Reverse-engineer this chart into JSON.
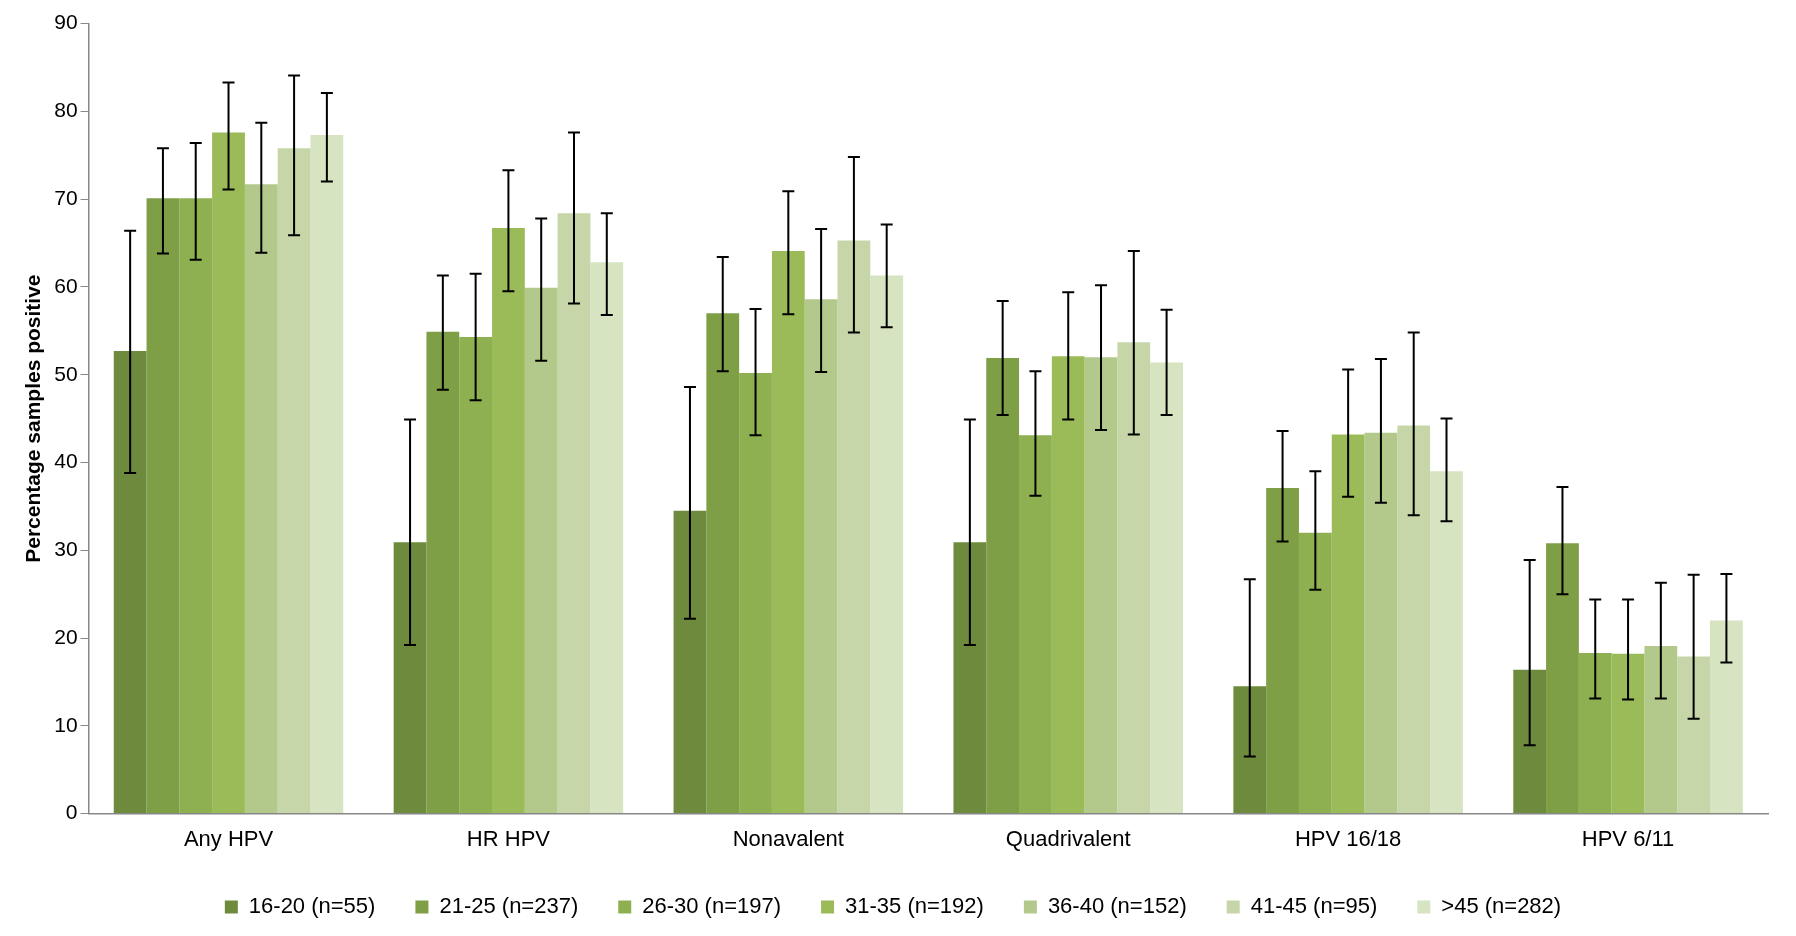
{
  "chart_data": {
    "type": "bar",
    "ylabel": "Percentage samples positive",
    "categories": [
      "Any HPV",
      "HR HPV",
      "Nonavalent",
      "Quadrivalent",
      "HPV 16/18",
      "HPV 6/11"
    ],
    "ylim": [
      0,
      90
    ],
    "yticks": [
      0,
      10,
      20,
      30,
      40,
      50,
      60,
      70,
      80,
      90
    ],
    "grid": false,
    "legend": "bottom",
    "series": [
      {
        "name": "16-20 (n=55)",
        "color": "#6e8b3d",
        "values": [
          52.7,
          30.9,
          34.5,
          30.9,
          14.5,
          16.4
        ],
        "errors": [
          [
            38.8,
            66.4
          ],
          [
            19.2,
            44.9
          ],
          [
            22.2,
            48.6
          ],
          [
            19.2,
            44.9
          ],
          [
            6.5,
            26.7
          ],
          [
            7.8,
            28.9
          ]
        ]
      },
      {
        "name": "21-25 (n=237)",
        "color": "#7f9f47",
        "values": [
          70.1,
          54.9,
          57.0,
          51.9,
          37.1,
          30.8
        ],
        "errors": [
          [
            63.8,
            75.8
          ],
          [
            48.3,
            61.3
          ],
          [
            50.4,
            63.4
          ],
          [
            45.4,
            58.4
          ],
          [
            31.0,
            43.6
          ],
          [
            25.0,
            37.2
          ]
        ]
      },
      {
        "name": "26-30 (n=197)",
        "color": "#8fb050",
        "values": [
          70.1,
          54.3,
          50.2,
          43.1,
          32.0,
          18.3
        ],
        "errors": [
          [
            63.1,
            76.4
          ],
          [
            47.1,
            61.5
          ],
          [
            43.1,
            57.5
          ],
          [
            36.2,
            50.4
          ],
          [
            25.5,
            39.0
          ],
          [
            13.1,
            24.4
          ]
        ]
      },
      {
        "name": "31-35 (n=192)",
        "color": "#9bbb59",
        "values": [
          77.6,
          66.7,
          64.1,
          52.1,
          43.2,
          18.2
        ],
        "errors": [
          [
            71.1,
            83.3
          ],
          [
            59.5,
            73.3
          ],
          [
            56.9,
            70.9
          ],
          [
            44.9,
            59.4
          ],
          [
            36.1,
            50.6
          ],
          [
            13.0,
            24.4
          ]
        ]
      },
      {
        "name": "36-40 (n=152)",
        "color": "#b3c98c",
        "values": [
          71.7,
          59.9,
          58.6,
          52.0,
          43.4,
          19.1
        ],
        "errors": [
          [
            63.9,
            78.7
          ],
          [
            51.6,
            67.8
          ],
          [
            50.3,
            66.6
          ],
          [
            43.7,
            60.2
          ],
          [
            35.4,
            51.8
          ],
          [
            13.1,
            26.3
          ]
        ]
      },
      {
        "name": "41-45 (n=95)",
        "color": "#c6d6a8",
        "values": [
          75.8,
          68.4,
          65.3,
          53.7,
          44.2,
          17.9
        ],
        "errors": [
          [
            65.9,
            84.1
          ],
          [
            58.1,
            77.6
          ],
          [
            54.8,
            74.8
          ],
          [
            43.2,
            64.1
          ],
          [
            34.0,
            54.8
          ],
          [
            10.8,
            27.2
          ]
        ]
      },
      {
        "name": ">45 (n=282)",
        "color": "#d7e4c2",
        "values": [
          77.3,
          62.8,
          61.3,
          51.4,
          39.0,
          22.0
        ],
        "errors": [
          [
            72.0,
            82.1
          ],
          [
            56.8,
            68.4
          ],
          [
            55.4,
            67.1
          ],
          [
            45.4,
            57.4
          ],
          [
            33.3,
            45.0
          ],
          [
            17.2,
            27.3
          ]
        ]
      }
    ]
  }
}
